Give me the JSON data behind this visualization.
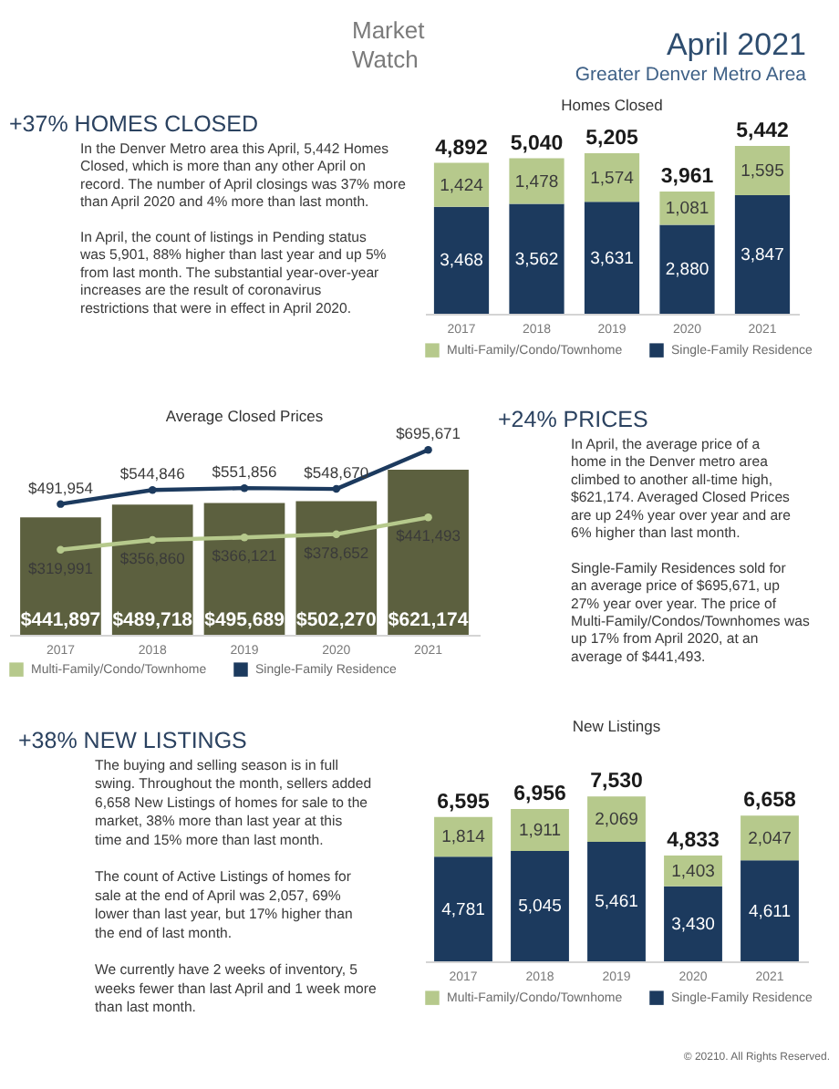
{
  "chart_data": [
    {
      "type": "other",
      "title": "April 2021",
      "subtitle": "Greater Denver Metro Area",
      "annotations": [
        "Market Watch"
      ]
    },
    {
      "type": "other",
      "title": "+37% HOMES CLOSED",
      "annotations": [
        "In the Denver Metro area this April, 5,442 Homes Closed, which is more than any other April on record. The number of April closings was 37% more than April 2020 and 4% more than last month.",
        "In April, the count of listings in Pending status was 5,901, 88% higher than last year and up 5% from last month. The substantial year-over-year increases are the result of coronavirus restrictions that were in effect in April 2020."
      ]
    },
    {
      "type": "bar",
      "title": "Homes Closed",
      "categories": [
        "2017",
        "2018",
        "2019",
        "2020",
        "2021"
      ],
      "stacked": true,
      "series": [
        {
          "name": "Single-Family Residence",
          "color": "#1c3a5e",
          "values": [
            3468,
            3562,
            3631,
            2880,
            3847
          ],
          "value_labels": [
            "3,468",
            "3,562",
            "3,631",
            "2,880",
            "3,847"
          ]
        },
        {
          "name": "Multi-Family/Condo/Townhome",
          "color": "#b6c98c",
          "values": [
            1424,
            1478,
            1574,
            1081,
            1595
          ],
          "value_labels": [
            "1,424",
            "1,478",
            "1,574",
            "1,081",
            "1,595"
          ]
        }
      ],
      "totals": [
        "4,892",
        "5,040",
        "5,205",
        "3,961",
        "5,442"
      ],
      "legend": "bottom"
    },
    {
      "type": "bar",
      "title": "Average Closed Prices",
      "categories": [
        "2017",
        "2018",
        "2019",
        "2020",
        "2021"
      ],
      "series": [
        {
          "type": "bar",
          "color": "#5c603f",
          "values": [
            441897,
            489718,
            495689,
            502270,
            621174
          ],
          "value_labels": [
            "$441,897",
            "$489,718",
            "$495,689",
            "$502,270",
            "$621,174"
          ]
        },
        {
          "name": "Multi-Family/Condo/Townhome",
          "type": "line",
          "color": "#b6c98c",
          "values": [
            319991,
            356860,
            366121,
            378652,
            441493
          ],
          "value_labels": [
            "$319,991",
            "$356,860",
            "$366,121",
            "$378,652",
            "$441,493"
          ]
        },
        {
          "name": "Single-Family Residence",
          "type": "line",
          "color": "#1c3a5e",
          "values": [
            491954,
            544846,
            551856,
            548670,
            695671
          ],
          "value_labels": [
            "$491,954",
            "$544,846",
            "$551,856",
            "$548,670",
            "$695,671"
          ]
        }
      ],
      "marker": "circle",
      "legend": "bottom"
    },
    {
      "type": "other",
      "title": "+24% PRICES",
      "annotations": [
        "In April, the average price of a home in the Denver metro area climbed to another all-time high, $621,174. Averaged Closed Prices are up 24% year over year and are 6% higher than last month.",
        "Single-Family Residences sold for an average price of $695,671, up 27% year over year. The price of Multi-Family/Condos/Townhomes was up 17% from April 2020, at an average of $441,493."
      ]
    },
    {
      "type": "other",
      "title": "+38% NEW LISTINGS",
      "annotations": [
        "The buying and selling season is in full swing. Throughout the month, sellers added 6,658 New Listings of homes for sale to the market, 38% more than last year at this time and 15% more than last month.",
        "The count of Active Listings of homes for sale at the end of April was 2,057, 69% lower than last year, but 17% higher than the end of last month.",
        "We currently have 2 weeks of inventory, 5 weeks fewer than last April and 1 week more than last month."
      ]
    },
    {
      "type": "bar",
      "title": "New Listings",
      "categories": [
        "2017",
        "2018",
        "2019",
        "2020",
        "2021"
      ],
      "stacked": true,
      "series": [
        {
          "name": "Single-Family Residence",
          "color": "#1c3a5e",
          "values": [
            4781,
            5045,
            5461,
            3430,
            4611
          ],
          "value_labels": [
            "4,781",
            "5,045",
            "5,461",
            "3,430",
            "4,611"
          ]
        },
        {
          "name": "Multi-Family/Condo/Townhome",
          "color": "#b6c98c",
          "values": [
            1814,
            1911,
            2069,
            1403,
            2047
          ],
          "value_labels": [
            "1,814",
            "1,911",
            "2,069",
            "1,403",
            "2,047"
          ]
        }
      ],
      "totals": [
        "6,595",
        "6,956",
        "7,530",
        "4,833",
        "6,658"
      ],
      "legend": "bottom",
      "annotations": [
        "© 20210. All Rights Reserved."
      ]
    }
  ]
}
